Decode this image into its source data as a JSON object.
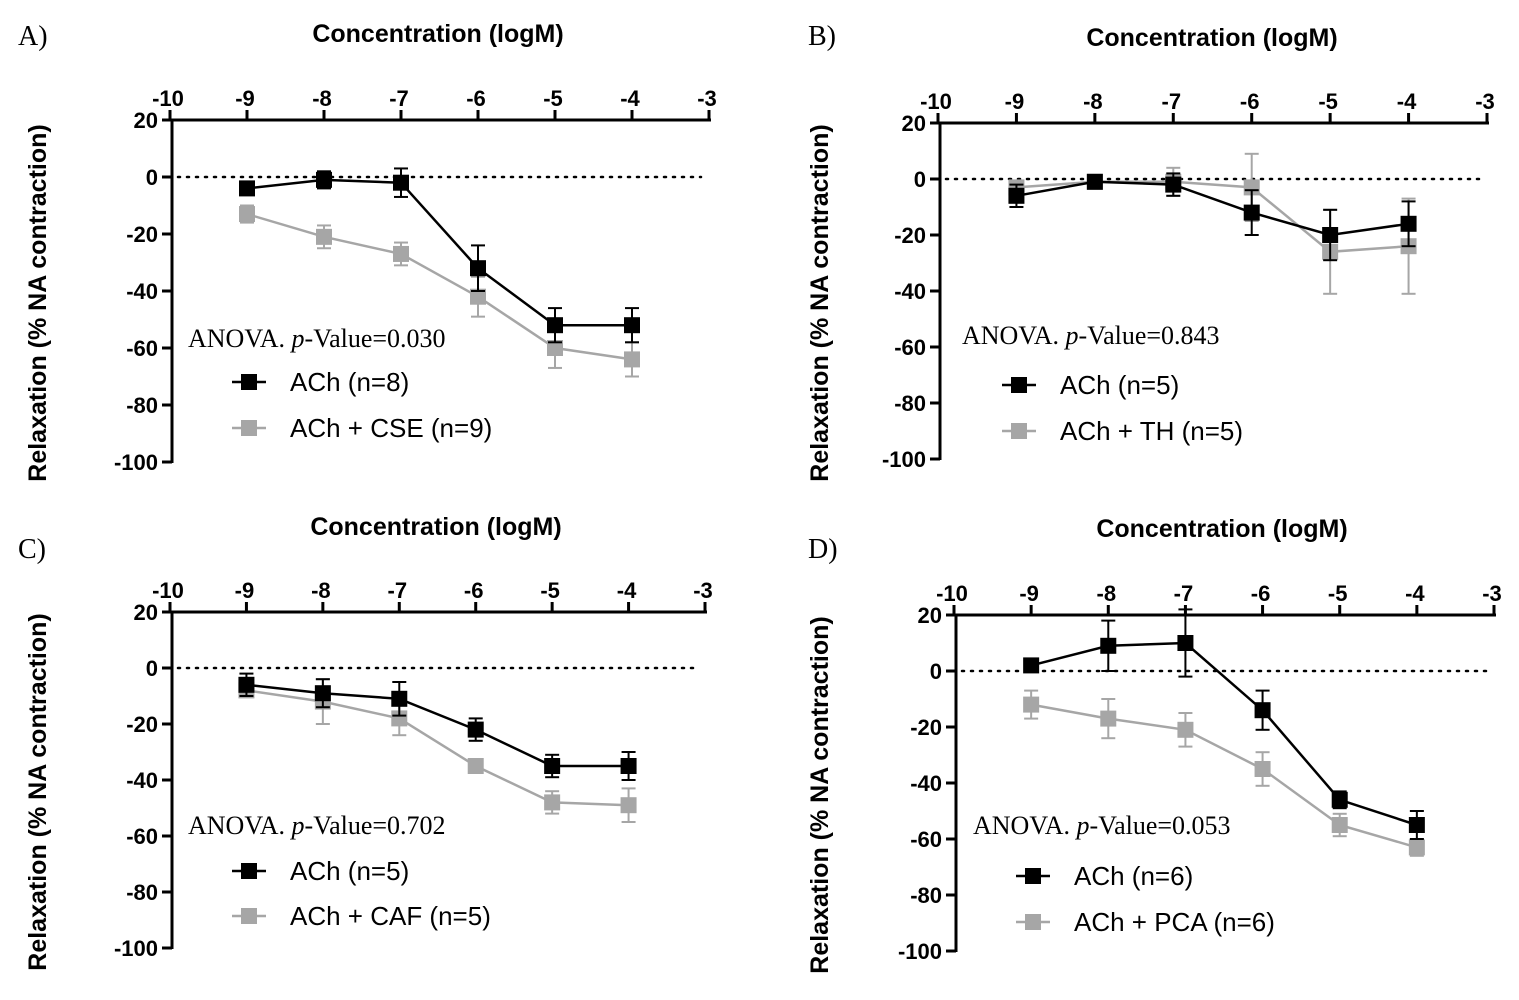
{
  "colors": {
    "series1": "#000000",
    "series2": "#a6a6a6",
    "axis": "#000000"
  },
  "chart_data": [
    {
      "type": "line",
      "panel_label": "A)",
      "title": "Concentration (logM)",
      "xlabel": "Concentration (logM)",
      "ylabel": "Relaxation (% NA contraction)",
      "xlim": [
        -10,
        -3
      ],
      "ylim": [
        -100,
        20
      ],
      "x_ticks": [
        "-10",
        "-9",
        "-8",
        "-7",
        "-6",
        "-5",
        "-4",
        "-3"
      ],
      "y_ticks": [
        "20",
        "0",
        "-20",
        "-40",
        "-60",
        "-80",
        "-100"
      ],
      "annotation": {
        "prefix": "ANOVA. ",
        "italic": "p",
        "suffix": "-Value=0.030"
      },
      "x": [
        -9,
        -8,
        -7,
        -6,
        -5,
        -4
      ],
      "series": [
        {
          "name": "ACh (n=8)",
          "values": [
            -4,
            -1,
            -2,
            -32,
            -52,
            -52
          ],
          "errors": [
            2,
            3,
            5,
            8,
            6,
            6
          ]
        },
        {
          "name": "ACh + CSE (n=9)",
          "values": [
            -13,
            -21,
            -27,
            -42,
            -60,
            -64
          ],
          "errors": [
            3,
            4,
            4,
            7,
            7,
            6
          ]
        }
      ]
    },
    {
      "type": "line",
      "panel_label": "B)",
      "title": "Concentration (logM)",
      "xlabel": "Concentration (logM)",
      "ylabel": "Relaxation (% NA contraction)",
      "xlim": [
        -10,
        -3
      ],
      "ylim": [
        -100,
        20
      ],
      "x_ticks": [
        "-10",
        "-9",
        "-8",
        "-7",
        "-6",
        "-5",
        "-4",
        "-3"
      ],
      "y_ticks": [
        "20",
        "0",
        "-20",
        "-40",
        "-60",
        "-80",
        "-100"
      ],
      "annotation": {
        "prefix": "ANOVA. ",
        "italic": "p",
        "suffix": "-Value=0.843"
      },
      "x": [
        -9,
        -8,
        -7,
        -6,
        -5,
        -4
      ],
      "series": [
        {
          "name": "ACh (n=5)",
          "values": [
            -6,
            -1,
            -2,
            -12,
            -20,
            -16
          ],
          "errors": [
            4,
            2,
            4,
            8,
            9,
            8
          ]
        },
        {
          "name": "ACh + TH (n=5)",
          "values": [
            -3,
            -1,
            -1,
            -3,
            -26,
            -24
          ],
          "errors": [
            2,
            2,
            5,
            12,
            15,
            17
          ]
        }
      ]
    },
    {
      "type": "line",
      "panel_label": "C)",
      "title": "Concentration (logM)",
      "xlabel": "Concentration (logM)",
      "ylabel": "Relaxation (% NA contraction)",
      "xlim": [
        -10,
        -3
      ],
      "ylim": [
        -100,
        20
      ],
      "x_ticks": [
        "-10",
        "-9",
        "-8",
        "-7",
        "-6",
        "-5",
        "-4",
        "-3"
      ],
      "y_ticks": [
        "20",
        "0",
        "-20",
        "-40",
        "-60",
        "-80",
        "-100"
      ],
      "annotation": {
        "prefix": "ANOVA. ",
        "italic": "p",
        "suffix": "-Value=0.702"
      },
      "x": [
        -9,
        -8,
        -7,
        -6,
        -5,
        -4
      ],
      "series": [
        {
          "name": "ACh (n=5)",
          "values": [
            -6,
            -9,
            -11,
            -22,
            -35,
            -35
          ],
          "errors": [
            4,
            5,
            6,
            4,
            4,
            5
          ]
        },
        {
          "name": "ACh + CAF (n=5)",
          "values": [
            -8,
            -12,
            -18,
            -35,
            -48,
            -49
          ],
          "errors": [
            2,
            8,
            6,
            2,
            4,
            6
          ]
        }
      ]
    },
    {
      "type": "line",
      "panel_label": "D)",
      "title": "Concentration (logM)",
      "xlabel": "Concentration (logM)",
      "ylabel": "Relaxation (% NA contraction)",
      "xlim": [
        -10,
        -3
      ],
      "ylim": [
        -100,
        20
      ],
      "x_ticks": [
        "-10",
        "-9",
        "-8",
        "-7",
        "-6",
        "-5",
        "-4",
        "-3"
      ],
      "y_ticks": [
        "20",
        "0",
        "-20",
        "-40",
        "-60",
        "-80",
        "-100"
      ],
      "annotation": {
        "prefix": "ANOVA. ",
        "italic": "p",
        "suffix": "-Value=0.053"
      },
      "x": [
        -9,
        -8,
        -7,
        -6,
        -5,
        -4
      ],
      "series": [
        {
          "name": "ACh (n=6)",
          "values": [
            2,
            9,
            10,
            -14,
            -46,
            -55
          ],
          "errors": [
            2,
            9,
            12,
            7,
            3,
            5
          ]
        },
        {
          "name": "ACh + PCA (n=6)",
          "values": [
            -12,
            -17,
            -21,
            -35,
            -55,
            -63
          ],
          "errors": [
            5,
            7,
            6,
            6,
            4,
            3
          ]
        }
      ]
    }
  ]
}
